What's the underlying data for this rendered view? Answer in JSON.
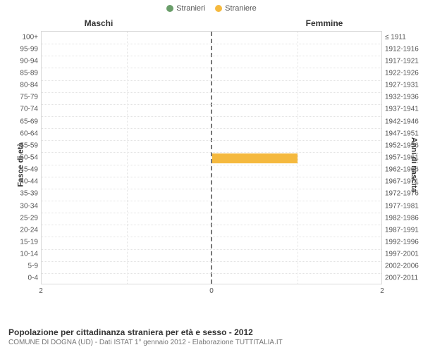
{
  "legend": {
    "male": {
      "label": "Stranieri",
      "color": "#6a9e6a"
    },
    "female": {
      "label": "Straniere",
      "color": "#f5b93e"
    }
  },
  "headers": {
    "left": "Maschi",
    "right": "Femmine"
  },
  "axis_titles": {
    "left": "Fasce di età",
    "right": "Anni di nascita"
  },
  "chart": {
    "type": "population-pyramid",
    "background_color": "#ffffff",
    "grid_color": "#e3e3e3",
    "center_line_color": "#777777",
    "xmax": 2,
    "xticks": [
      2,
      0,
      2
    ],
    "bar_height_ratio": 0.82,
    "age_bands": [
      {
        "age": "100+",
        "birth": "≤ 1911",
        "m": 0,
        "f": 0
      },
      {
        "age": "95-99",
        "birth": "1912-1916",
        "m": 0,
        "f": 0
      },
      {
        "age": "90-94",
        "birth": "1917-1921",
        "m": 0,
        "f": 0
      },
      {
        "age": "85-89",
        "birth": "1922-1926",
        "m": 0,
        "f": 0
      },
      {
        "age": "80-84",
        "birth": "1927-1931",
        "m": 0,
        "f": 0
      },
      {
        "age": "75-79",
        "birth": "1932-1936",
        "m": 0,
        "f": 0
      },
      {
        "age": "70-74",
        "birth": "1937-1941",
        "m": 0,
        "f": 0
      },
      {
        "age": "65-69",
        "birth": "1942-1946",
        "m": 0,
        "f": 0
      },
      {
        "age": "60-64",
        "birth": "1947-1951",
        "m": 0,
        "f": 0
      },
      {
        "age": "55-59",
        "birth": "1952-1956",
        "m": 0,
        "f": 0
      },
      {
        "age": "50-54",
        "birth": "1957-1961",
        "m": 0,
        "f": 1
      },
      {
        "age": "45-49",
        "birth": "1962-1966",
        "m": 0,
        "f": 0
      },
      {
        "age": "40-44",
        "birth": "1967-1971",
        "m": 0,
        "f": 0
      },
      {
        "age": "35-39",
        "birth": "1972-1976",
        "m": 0,
        "f": 0
      },
      {
        "age": "30-34",
        "birth": "1977-1981",
        "m": 0,
        "f": 0
      },
      {
        "age": "25-29",
        "birth": "1982-1986",
        "m": 0,
        "f": 0
      },
      {
        "age": "20-24",
        "birth": "1987-1991",
        "m": 0,
        "f": 0
      },
      {
        "age": "15-19",
        "birth": "1992-1996",
        "m": 0,
        "f": 0
      },
      {
        "age": "10-14",
        "birth": "1997-2001",
        "m": 0,
        "f": 0
      },
      {
        "age": "5-9",
        "birth": "2002-2006",
        "m": 0,
        "f": 0
      },
      {
        "age": "0-4",
        "birth": "2007-2011",
        "m": 0,
        "f": 0
      }
    ]
  },
  "footer": {
    "title": "Popolazione per cittadinanza straniera per età e sesso - 2012",
    "subtitle": "COMUNE DI DOGNA (UD) - Dati ISTAT 1° gennaio 2012 - Elaborazione TUTTITALIA.IT"
  }
}
